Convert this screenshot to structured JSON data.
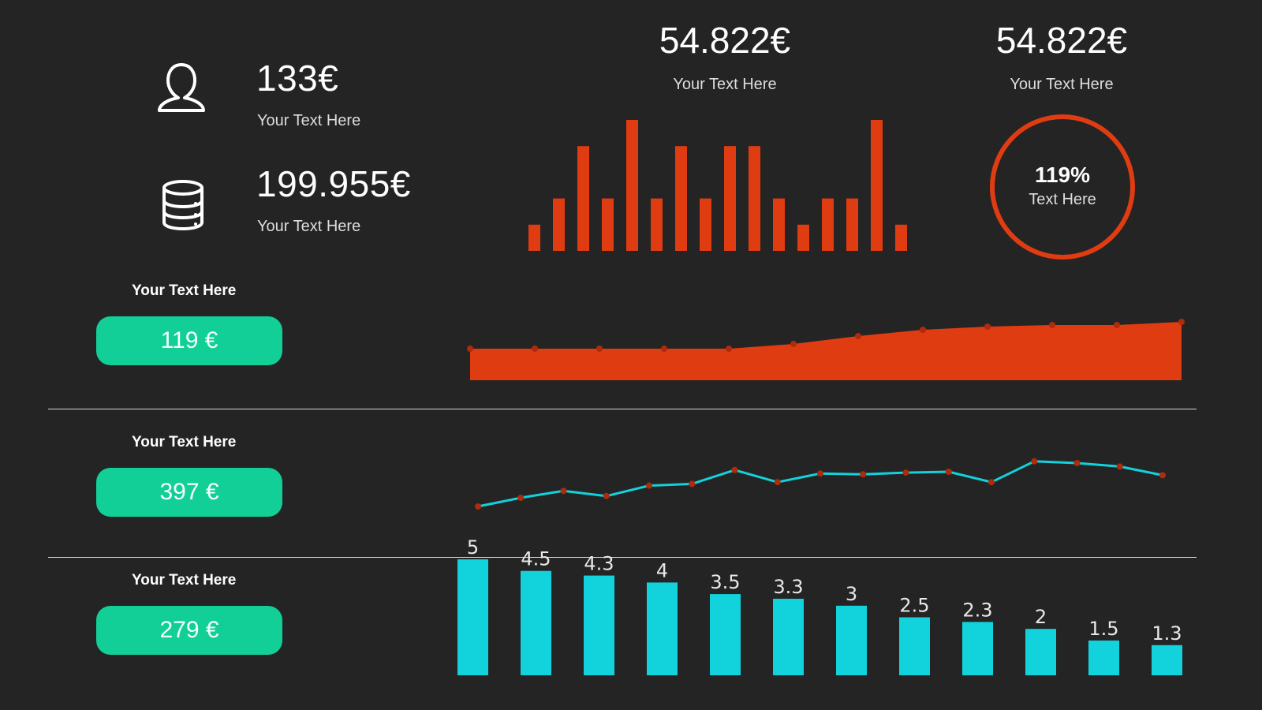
{
  "colors": {
    "background": "#242424",
    "orange": "#e03c12",
    "teal": "#12cf98",
    "cyan": "#12d2dc",
    "marker": "#b02a0c"
  },
  "kpis": [
    {
      "icon": "user-icon",
      "value": "133€",
      "label": "Your Text Here"
    },
    {
      "icon": "database-icon",
      "value": "199.955€",
      "label": "Your Text Here"
    }
  ],
  "top_stats": [
    {
      "value": "54.822€",
      "label": "Your Text Here"
    },
    {
      "value": "54.822€",
      "label": "Your Text Here"
    }
  ],
  "ring": {
    "percent_label": "119%",
    "label": "Text Here",
    "value": 119
  },
  "rows": [
    {
      "label": "Your Text Here",
      "pill": "119 €"
    },
    {
      "label": "Your Text Here",
      "pill": "397 €"
    },
    {
      "label": "Your Text Here",
      "pill": "279 €"
    }
  ],
  "chart_data": [
    {
      "type": "bar",
      "values": [
        1,
        2,
        4,
        2,
        5,
        2,
        4,
        2,
        4,
        4,
        2,
        1,
        2,
        2,
        5,
        1
      ],
      "ylim": [
        0,
        5
      ],
      "color": "#e03c12"
    },
    {
      "type": "area",
      "values": [
        2.0,
        2.0,
        2.0,
        2.0,
        2.0,
        2.3,
        2.8,
        3.2,
        3.4,
        3.5,
        3.5,
        3.7
      ],
      "ylim": [
        0,
        4
      ],
      "color": "#e03c12"
    },
    {
      "type": "line",
      "values": [
        1.0,
        1.5,
        1.9,
        1.6,
        2.2,
        2.3,
        3.1,
        2.4,
        2.9,
        2.85,
        2.95,
        3.0,
        2.4,
        3.6,
        3.5,
        3.3,
        2.8
      ],
      "ylim": [
        0,
        4
      ],
      "color": "#12d2dc"
    },
    {
      "type": "bar",
      "values": [
        5,
        4.5,
        4.3,
        4,
        3.5,
        3.3,
        3,
        2.5,
        2.3,
        2,
        1.5,
        1.3
      ],
      "data_labels": [
        "5",
        "4.5",
        "4.3",
        "4",
        "3.5",
        "3.3",
        "3",
        "2.5",
        "2.3",
        "2",
        "1.5",
        "1.3"
      ],
      "ylim": [
        0,
        5
      ],
      "color": "#12d2dc"
    }
  ]
}
